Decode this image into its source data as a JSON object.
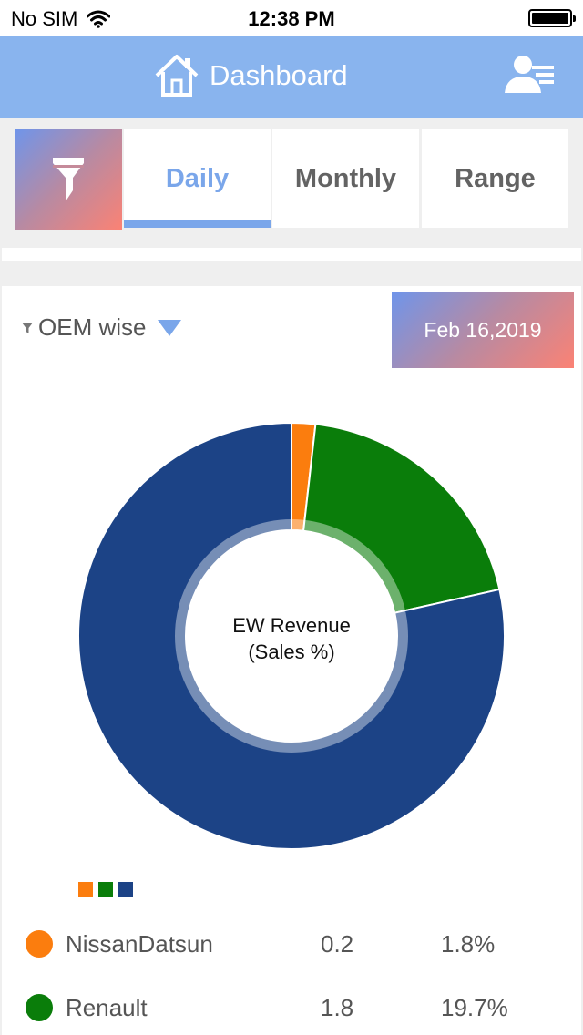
{
  "status_bar": {
    "carrier": "No SIM",
    "time": "12:38 PM"
  },
  "nav": {
    "title": "Dashboard",
    "icons": [
      "home-icon",
      "user-menu-icon"
    ]
  },
  "filter": {
    "icon": "funnel-icon"
  },
  "tabs": [
    {
      "label": "Daily",
      "active": true
    },
    {
      "label": "Monthly",
      "active": false
    },
    {
      "label": "Range",
      "active": false
    }
  ],
  "card": {
    "dropdown_label": "OEM wise",
    "date_label": "Feb 16,2019",
    "center_line1": "EW Revenue",
    "center_line2": "(Sales %)"
  },
  "colors": {
    "accent": "#7aa6ea",
    "header": "#89b4ee",
    "gradient_start": "#6f95ea",
    "gradient_end": "#fb8274"
  },
  "chart_data": {
    "type": "pie",
    "series": [
      {
        "name": "NissanDatsun",
        "value": 0.2,
        "percent": 1.8,
        "color": "#fb7d0e"
      },
      {
        "name": "Renault",
        "value": 1.8,
        "percent": 19.7,
        "color": "#0a7d0a"
      },
      {
        "name": "",
        "value": null,
        "percent": 78.5,
        "color": "#1c4386"
      }
    ]
  },
  "rows": [
    {
      "name": "NissanDatsun",
      "value": "0.2",
      "percent": "1.8%",
      "color": "#fb7d0e"
    },
    {
      "name": "Renault",
      "value": "1.8",
      "percent": "19.7%",
      "color": "#0a7d0a"
    }
  ]
}
